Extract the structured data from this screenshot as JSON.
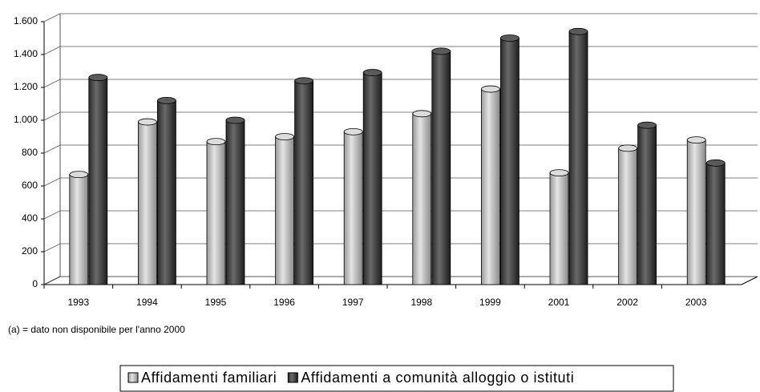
{
  "chart_data": {
    "type": "bar",
    "categories": [
      "1993",
      "1994",
      "1995",
      "1996",
      "1997",
      "1998",
      "1999",
      "2001",
      "2002",
      "2003"
    ],
    "series": [
      {
        "name": "Affidamenti familiari",
        "color": "#c4c4c4",
        "values": [
          670,
          990,
          870,
          900,
          930,
          1040,
          1190,
          680,
          830,
          880
        ]
      },
      {
        "name": "Affidamenti a comunità alloggio o istituti",
        "color": "#4a4a4a",
        "values": [
          1260,
          1120,
          1000,
          1240,
          1290,
          1420,
          1500,
          1540,
          970,
          740
        ]
      }
    ],
    "ylim": [
      0,
      1600
    ],
    "yticks": [
      0,
      200,
      400,
      600,
      800,
      {
        "value": 1000,
        "label": "1.000"
      },
      {
        "value": 1200,
        "label": "1.200"
      },
      {
        "value": 1400,
        "label": "1.400"
      },
      {
        "value": 1600,
        "label": "1.600"
      }
    ],
    "grid": true,
    "annotations": [
      "(a) = dato non disponibile per l'anno 2000"
    ],
    "legend": "bottom"
  }
}
